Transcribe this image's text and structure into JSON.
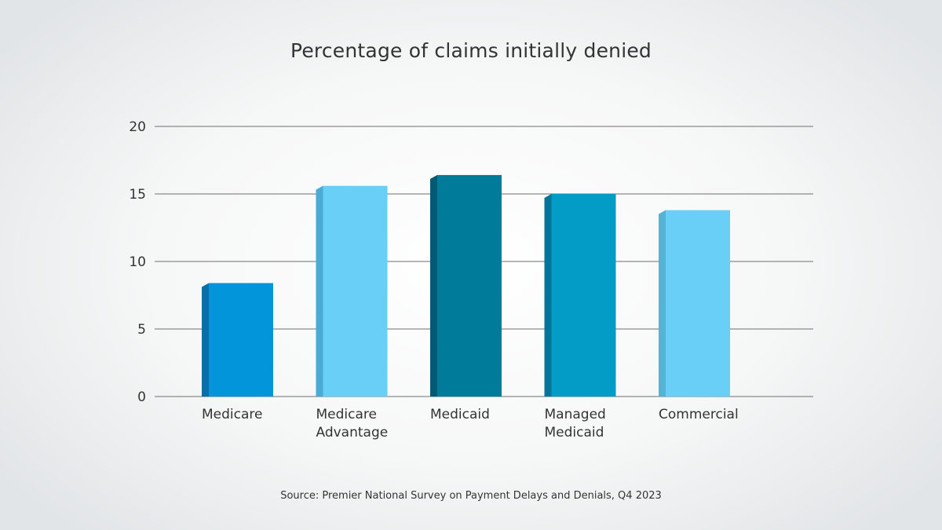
{
  "chart_data": {
    "type": "bar",
    "title": "Percentage of claims initially denied",
    "source": "Source: Premier National Survey on Payment Delays and Denials, Q4 2023",
    "categories": [
      [
        "Medicare"
      ],
      [
        "Medicare",
        "Advantage"
      ],
      [
        "Medicaid"
      ],
      [
        "Managed",
        "Medicaid"
      ],
      [
        "Commercial"
      ]
    ],
    "values": [
      8.4,
      15.6,
      16.4,
      15.0,
      13.8
    ],
    "colors": [
      "#0295d9",
      "#6acff6",
      "#007b9a",
      "#029cc6",
      "#6acff6"
    ],
    "side_colors": [
      "#0b6fa7",
      "#4aacd5",
      "#005a72",
      "#027598",
      "#55b3d6"
    ],
    "ylim": [
      0,
      20
    ],
    "yticks": [
      "0",
      "5",
      "10",
      "15",
      "20"
    ],
    "grid": true,
    "gridline_color": "#6e6e6e"
  }
}
